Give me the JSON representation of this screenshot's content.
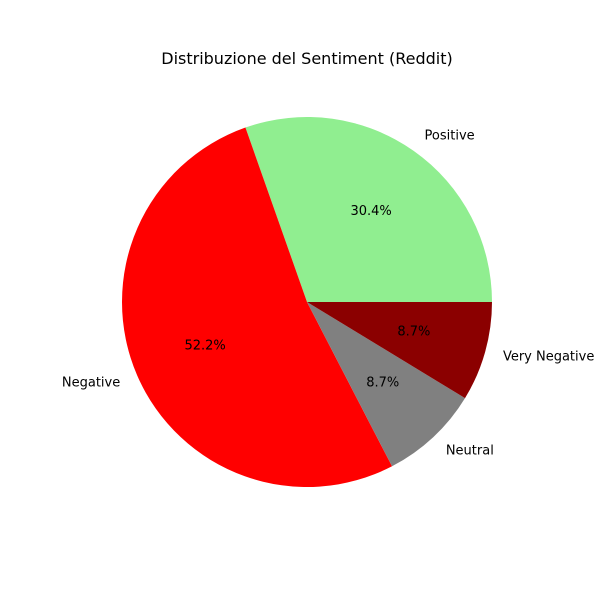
{
  "chart_data": {
    "type": "pie",
    "title": "Distribuzione del Sentiment (Reddit)",
    "slices": [
      {
        "label": "Positive",
        "value": 30.4,
        "pct_label": "30.4%",
        "color": "#90ee90"
      },
      {
        "label": "Negative",
        "value": 52.2,
        "pct_label": "52.2%",
        "color": "#ff0000"
      },
      {
        "label": "Neutral",
        "value": 8.7,
        "pct_label": "8.7%",
        "color": "#808080"
      },
      {
        "label": "Very Negative",
        "value": 8.7,
        "pct_label": "8.7%",
        "color": "#8b0000"
      }
    ],
    "start_angle_deg": 0,
    "direction": "counterclockwise",
    "legend": "none"
  }
}
